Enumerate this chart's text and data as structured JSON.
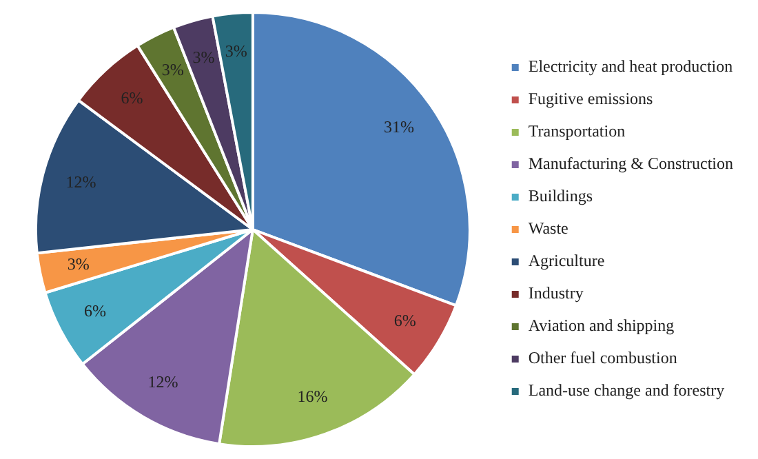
{
  "chart_data": {
    "type": "pie",
    "categories": [
      "Electricity and heat production",
      "Fugitive emissions",
      "Transportation",
      "Manufacturing & Construction",
      "Buildings",
      "Waste",
      "Agriculture",
      "Industry",
      "Aviation and shipping",
      "Other fuel combustion",
      "Land-use change and forestry"
    ],
    "values": [
      31,
      6,
      16,
      12,
      6,
      3,
      12,
      6,
      3,
      3,
      3
    ],
    "colors": [
      "#4f81bd",
      "#c0504d",
      "#9bbb59",
      "#8064a2",
      "#4bacc6",
      "#f79646",
      "#2c4d75",
      "#772c2a",
      "#5f7530",
      "#4d3b62",
      "#276a7c"
    ],
    "value_labels": [
      "31%",
      "6%",
      "16%",
      "12%",
      "6%",
      "3%",
      "12%",
      "6%",
      "3%",
      "3%",
      "3%"
    ],
    "legend": "right"
  }
}
